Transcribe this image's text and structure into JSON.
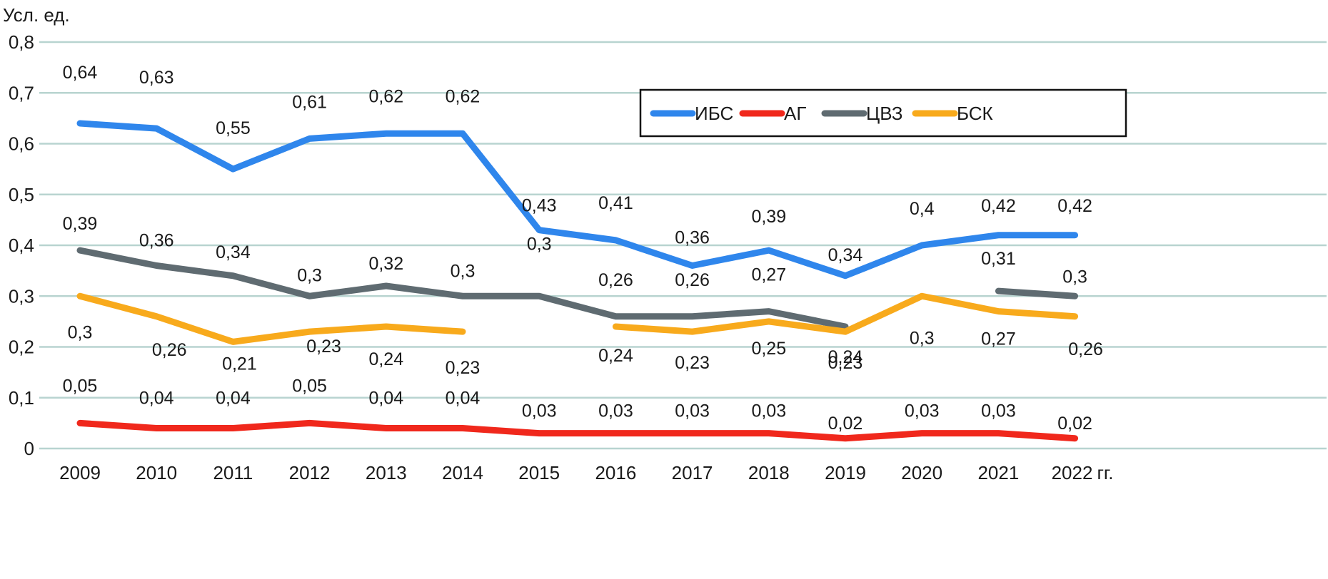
{
  "chart_data": {
    "type": "line",
    "title": "",
    "ylabel": "Усл. ед.",
    "xlabel": "",
    "x_suffix": "гг.",
    "ylim": [
      0,
      0.8
    ],
    "yticks": [
      0,
      0.1,
      0.2,
      0.3,
      0.4,
      0.5,
      0.6,
      0.7,
      0.8
    ],
    "ytick_labels": [
      "0",
      "0,1",
      "0,2",
      "0,3",
      "0,4",
      "0,5",
      "0,6",
      "0,7",
      "0,8"
    ],
    "grid": true,
    "legend_position": "top-right",
    "categories": [
      "2009",
      "2010",
      "2011",
      "2012",
      "2013",
      "2014",
      "2015",
      "2016",
      "2017",
      "2018",
      "2019",
      "2020",
      "2021",
      "2022"
    ],
    "series": [
      {
        "name": "ИБС",
        "color": "#2f86ec",
        "values": [
          0.64,
          0.63,
          0.55,
          0.61,
          0.62,
          0.62,
          0.43,
          0.41,
          0.36,
          0.39,
          0.34,
          0.4,
          0.42,
          0.42
        ],
        "labels": [
          "0,64",
          "0,63",
          "0,55",
          "0,61",
          "0,62",
          "0,62",
          "0,43",
          "0,41",
          "0,36",
          "0,39",
          "0,34",
          "0,4",
          "0,42",
          "0,42"
        ]
      },
      {
        "name": "АГ",
        "color": "#f0281c",
        "values": [
          0.05,
          0.04,
          0.04,
          0.05,
          0.04,
          0.04,
          0.03,
          0.03,
          0.03,
          0.03,
          0.02,
          0.03,
          0.03,
          0.02
        ],
        "labels": [
          "0,05",
          "0,04",
          "0,04",
          "0,05",
          "0,04",
          "0,04",
          "0,03",
          "0,03",
          "0,03",
          "0,03",
          "0,02",
          "0,03",
          "0,03",
          "0,02"
        ]
      },
      {
        "name": "ЦВЗ",
        "color": "#5f6b71",
        "values": [
          0.39,
          0.36,
          0.34,
          0.3,
          0.32,
          0.3,
          0.3,
          0.26,
          0.26,
          0.27,
          0.24,
          null,
          0.31,
          0.3
        ],
        "labels": [
          "0,39",
          "0,36",
          "0,34",
          "0,3",
          "0,32",
          "0,3",
          "0,3",
          "0,26",
          "0,26",
          "0,27",
          "0,24",
          null,
          "0,31",
          "0,3"
        ]
      },
      {
        "name": "БСК",
        "color": "#f8aa1c",
        "values": [
          0.3,
          0.26,
          0.21,
          0.23,
          0.24,
          0.23,
          null,
          0.24,
          0.23,
          0.25,
          0.23,
          0.3,
          0.27,
          0.26
        ],
        "labels": [
          "0,3",
          "0,26",
          "0,21",
          "0,23",
          "0,24",
          "0,23",
          null,
          "0,24",
          "0,23",
          "0,25",
          "0,23",
          "0,3",
          "0,27",
          "0,26"
        ]
      }
    ]
  }
}
